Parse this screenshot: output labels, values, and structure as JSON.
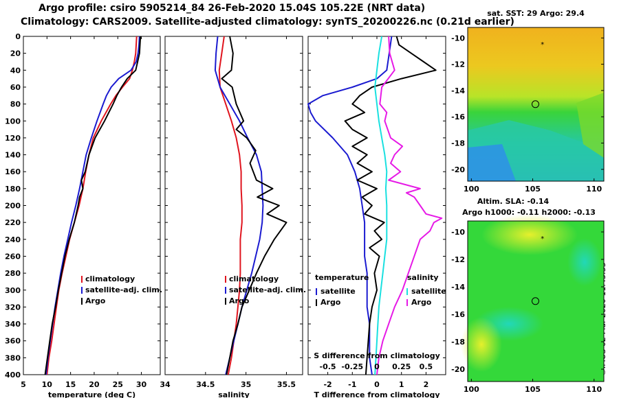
{
  "titles": {
    "line1": "Argo profile: csiro 5905214_84 26-Feb-2020 15.04S 105.22E (NRT data)",
    "line2": "Climatology: CARS2009. Satellite-adjusted climatology: synTS_20200226.nc (0.21d earlier)"
  },
  "stamp": "©IMOS 02-Mar-2020 11:43:33",
  "colors": {
    "climatology": "#e0141e",
    "satellite": "#1a1ad0",
    "argo": "#000000",
    "sal_sat": "#19e0e0",
    "sal_argo": "#e619e6"
  },
  "depth_ticks": [
    0,
    20,
    40,
    60,
    80,
    100,
    120,
    140,
    160,
    180,
    200,
    220,
    240,
    260,
    280,
    300,
    320,
    340,
    360,
    380,
    400
  ],
  "chart_data": [
    {
      "type": "line",
      "name": "temperature",
      "xlabel": "temperature (deg C)",
      "ylabel": "depth",
      "xlim": [
        5,
        34
      ],
      "ylim": [
        400,
        0
      ],
      "xticks": [
        5,
        10,
        15,
        20,
        25,
        30
      ],
      "legend": [
        "climatology",
        "satellite-adj. clim.",
        "Argo"
      ],
      "series": [
        {
          "name": "climatology",
          "color": "#e0141e",
          "depth": [
            0,
            10,
            20,
            30,
            40,
            50,
            60,
            70,
            80,
            100,
            120,
            140,
            160,
            180,
            200,
            220,
            240,
            260,
            280,
            300,
            320,
            340,
            360,
            380,
            400
          ],
          "values": [
            29.0,
            28.9,
            28.8,
            28.5,
            28.1,
            27.5,
            26.0,
            24.6,
            23.5,
            21.5,
            19.8,
            18.9,
            18.2,
            17.6,
            16.8,
            15.8,
            14.8,
            14.0,
            13.2,
            12.5,
            12.0,
            11.5,
            11.0,
            10.4,
            10.0
          ]
        },
        {
          "name": "satellite-adj. clim.",
          "color": "#1a1ad0",
          "depth": [
            0,
            10,
            20,
            30,
            40,
            50,
            60,
            70,
            80,
            100,
            120,
            140,
            160,
            180,
            200,
            220,
            240,
            260,
            280,
            300,
            320,
            340,
            360,
            380,
            400
          ],
          "values": [
            29.6,
            29.5,
            29.3,
            28.9,
            27.8,
            25.2,
            23.6,
            22.6,
            21.9,
            20.6,
            19.4,
            18.3,
            17.6,
            16.9,
            16.1,
            15.2,
            14.4,
            13.6,
            12.9,
            12.3,
            11.7,
            11.2,
            10.7,
            10.2,
            9.8
          ]
        },
        {
          "name": "Argo",
          "color": "#000000",
          "depth": [
            0,
            10,
            20,
            30,
            40,
            50,
            60,
            70,
            80,
            100,
            120,
            140,
            160,
            170,
            180,
            190,
            200,
            220,
            240,
            260,
            280,
            300,
            320,
            340,
            360,
            380,
            400
          ],
          "values": [
            29.8,
            29.7,
            29.6,
            29.2,
            28.8,
            27.0,
            25.8,
            24.8,
            24.0,
            22.2,
            20.2,
            18.9,
            18.1,
            17.3,
            17.6,
            16.9,
            16.6,
            15.8,
            14.7,
            13.8,
            13.1,
            12.4,
            11.8,
            11.1,
            10.6,
            10.1,
            9.6
          ]
        }
      ]
    },
    {
      "type": "line",
      "name": "salinity",
      "xlabel": "salinity",
      "ylabel": "depth",
      "xlim": [
        34,
        35.7
      ],
      "ylim": [
        400,
        0
      ],
      "xticks": [
        34,
        34.5,
        35,
        35.5
      ],
      "legend": [
        "climatology",
        "satellite-adj. clim.",
        "Argo"
      ],
      "series": [
        {
          "name": "climatology",
          "color": "#e0141e",
          "depth": [
            0,
            20,
            40,
            60,
            80,
            100,
            120,
            140,
            160,
            180,
            200,
            220,
            240,
            260,
            280,
            300,
            320,
            340,
            360,
            380,
            400
          ],
          "values": [
            34.73,
            34.7,
            34.67,
            34.68,
            34.75,
            34.82,
            34.88,
            34.92,
            34.94,
            34.94,
            34.95,
            34.95,
            34.93,
            34.93,
            34.93,
            34.92,
            34.9,
            34.88,
            34.85,
            34.82,
            34.78
          ]
        },
        {
          "name": "satellite-adj. clim.",
          "color": "#1a1ad0",
          "depth": [
            0,
            20,
            40,
            60,
            80,
            100,
            120,
            140,
            160,
            180,
            200,
            220,
            240,
            260,
            280,
            300,
            320,
            340,
            360,
            380,
            400
          ],
          "values": [
            34.65,
            34.63,
            34.62,
            34.68,
            34.8,
            34.92,
            35.02,
            35.13,
            35.19,
            35.2,
            35.21,
            35.2,
            35.17,
            35.12,
            35.07,
            35.01,
            34.95,
            34.9,
            34.85,
            34.8,
            34.75
          ]
        },
        {
          "name": "Argo",
          "color": "#000000",
          "depth": [
            0,
            20,
            40,
            50,
            60,
            80,
            100,
            110,
            120,
            135,
            150,
            170,
            180,
            190,
            200,
            210,
            220,
            240,
            260,
            280,
            300,
            320,
            340,
            360,
            380,
            400
          ],
          "values": [
            34.8,
            34.84,
            34.82,
            34.7,
            34.83,
            34.88,
            34.97,
            34.88,
            35.01,
            35.12,
            35.05,
            35.13,
            35.33,
            35.14,
            35.41,
            35.26,
            35.5,
            35.35,
            35.23,
            35.13,
            35.04,
            34.95,
            34.9,
            34.84,
            34.8,
            34.76
          ]
        }
      ]
    },
    {
      "type": "line",
      "name": "difference",
      "xlabel": "T difference from climatology",
      "xlabel_top": "S difference from climatology",
      "xlim": [
        -2.8,
        2.8
      ],
      "ylim": [
        400,
        0
      ],
      "xticks": [
        -2,
        -1,
        0,
        1,
        2
      ],
      "top_xlim": [
        -0.7,
        0.7
      ],
      "top_xticks": [
        -0.5,
        -0.25,
        0,
        0.25,
        0.5
      ],
      "legend_groups": {
        "left_title": "temperature",
        "left": [
          "satellite",
          "Argo"
        ],
        "right_title": "salinity",
        "right": [
          "satellite",
          "Argo"
        ]
      },
      "series": [
        {
          "name": "temperature satellite",
          "color": "#1a1ad0",
          "axis": "T",
          "depth": [
            0,
            20,
            40,
            50,
            60,
            70,
            80,
            90,
            100,
            120,
            140,
            160,
            180,
            200,
            220,
            240,
            260,
            280,
            300,
            320,
            340,
            360,
            380,
            400
          ],
          "values": [
            0.6,
            0.5,
            0.4,
            0.0,
            -1.0,
            -2.2,
            -2.8,
            -2.7,
            -2.5,
            -1.8,
            -1.2,
            -0.9,
            -0.7,
            -0.6,
            -0.5,
            -0.5,
            -0.5,
            -0.4,
            -0.4,
            -0.4,
            -0.3,
            -0.3,
            -0.3,
            -0.2
          ]
        },
        {
          "name": "temperature Argo",
          "color": "#000000",
          "axis": "T",
          "depth": [
            0,
            10,
            20,
            30,
            40,
            50,
            60,
            70,
            80,
            90,
            100,
            110,
            120,
            130,
            140,
            150,
            160,
            170,
            180,
            190,
            200,
            210,
            220,
            230,
            240,
            250,
            260,
            280,
            300,
            320,
            340,
            360,
            380,
            400
          ],
          "values": [
            0.8,
            0.9,
            1.4,
            1.9,
            2.4,
            1.0,
            -0.2,
            -0.7,
            -1.0,
            -0.5,
            -1.3,
            -1.0,
            -0.4,
            -1.0,
            -0.4,
            -0.8,
            -0.2,
            -0.8,
            0.0,
            -0.6,
            -0.2,
            -0.5,
            0.3,
            -0.1,
            0.2,
            -0.3,
            0.1,
            -0.1,
            0.0,
            -0.2,
            -0.3,
            -0.35,
            -0.4,
            -0.45
          ]
        },
        {
          "name": "salinity satellite",
          "color": "#19e0e0",
          "axis": "S",
          "depth": [
            0,
            20,
            40,
            60,
            80,
            100,
            120,
            140,
            160,
            180,
            200,
            220,
            240,
            260,
            280,
            300,
            320,
            340,
            360,
            380,
            400
          ],
          "values": [
            0.05,
            0.02,
            0.0,
            -0.02,
            0.0,
            0.02,
            0.05,
            0.08,
            0.1,
            0.09,
            0.1,
            0.1,
            0.1,
            0.08,
            0.06,
            0.04,
            0.02,
            0.01,
            0.0,
            -0.01,
            -0.02
          ]
        },
        {
          "name": "salinity Argo",
          "color": "#e619e6",
          "axis": "S",
          "depth": [
            0,
            20,
            40,
            60,
            80,
            90,
            100,
            120,
            130,
            140,
            150,
            160,
            170,
            180,
            185,
            190,
            200,
            210,
            215,
            220,
            230,
            240,
            260,
            280,
            300,
            320,
            340,
            360,
            380,
            400
          ],
          "values": [
            0.12,
            0.13,
            0.18,
            0.05,
            0.03,
            0.1,
            0.08,
            0.14,
            0.26,
            0.18,
            0.14,
            0.24,
            0.12,
            0.44,
            0.3,
            0.38,
            0.44,
            0.5,
            0.66,
            0.58,
            0.54,
            0.44,
            0.38,
            0.32,
            0.26,
            0.18,
            0.12,
            0.06,
            0.02,
            0.0
          ]
        }
      ]
    },
    {
      "type": "heatmap",
      "name": "sst_map",
      "title": "sat. SST: 29 Argo: 29.4",
      "xlim": [
        99.7,
        110.8
      ],
      "ylim": [
        -20.9,
        -9.2
      ],
      "xticks": [
        100,
        105,
        110
      ],
      "yticks": [
        -10,
        -12,
        -14,
        -16,
        -18,
        -20
      ],
      "argo_position": {
        "lon": 105.22,
        "lat": -15.04
      }
    },
    {
      "type": "heatmap",
      "name": "sla_map",
      "title_line1": "Altim. SLA: -0.14",
      "title_line2": "Argo h1000: -0.11 h2000: -0.13",
      "xlim": [
        99.7,
        110.8
      ],
      "ylim": [
        -20.9,
        -9.2
      ],
      "xticks": [
        100,
        105,
        110
      ],
      "yticks": [
        -10,
        -12,
        -14,
        -16,
        -18,
        -20
      ],
      "argo_position": {
        "lon": 105.22,
        "lat": -15.04
      }
    }
  ]
}
